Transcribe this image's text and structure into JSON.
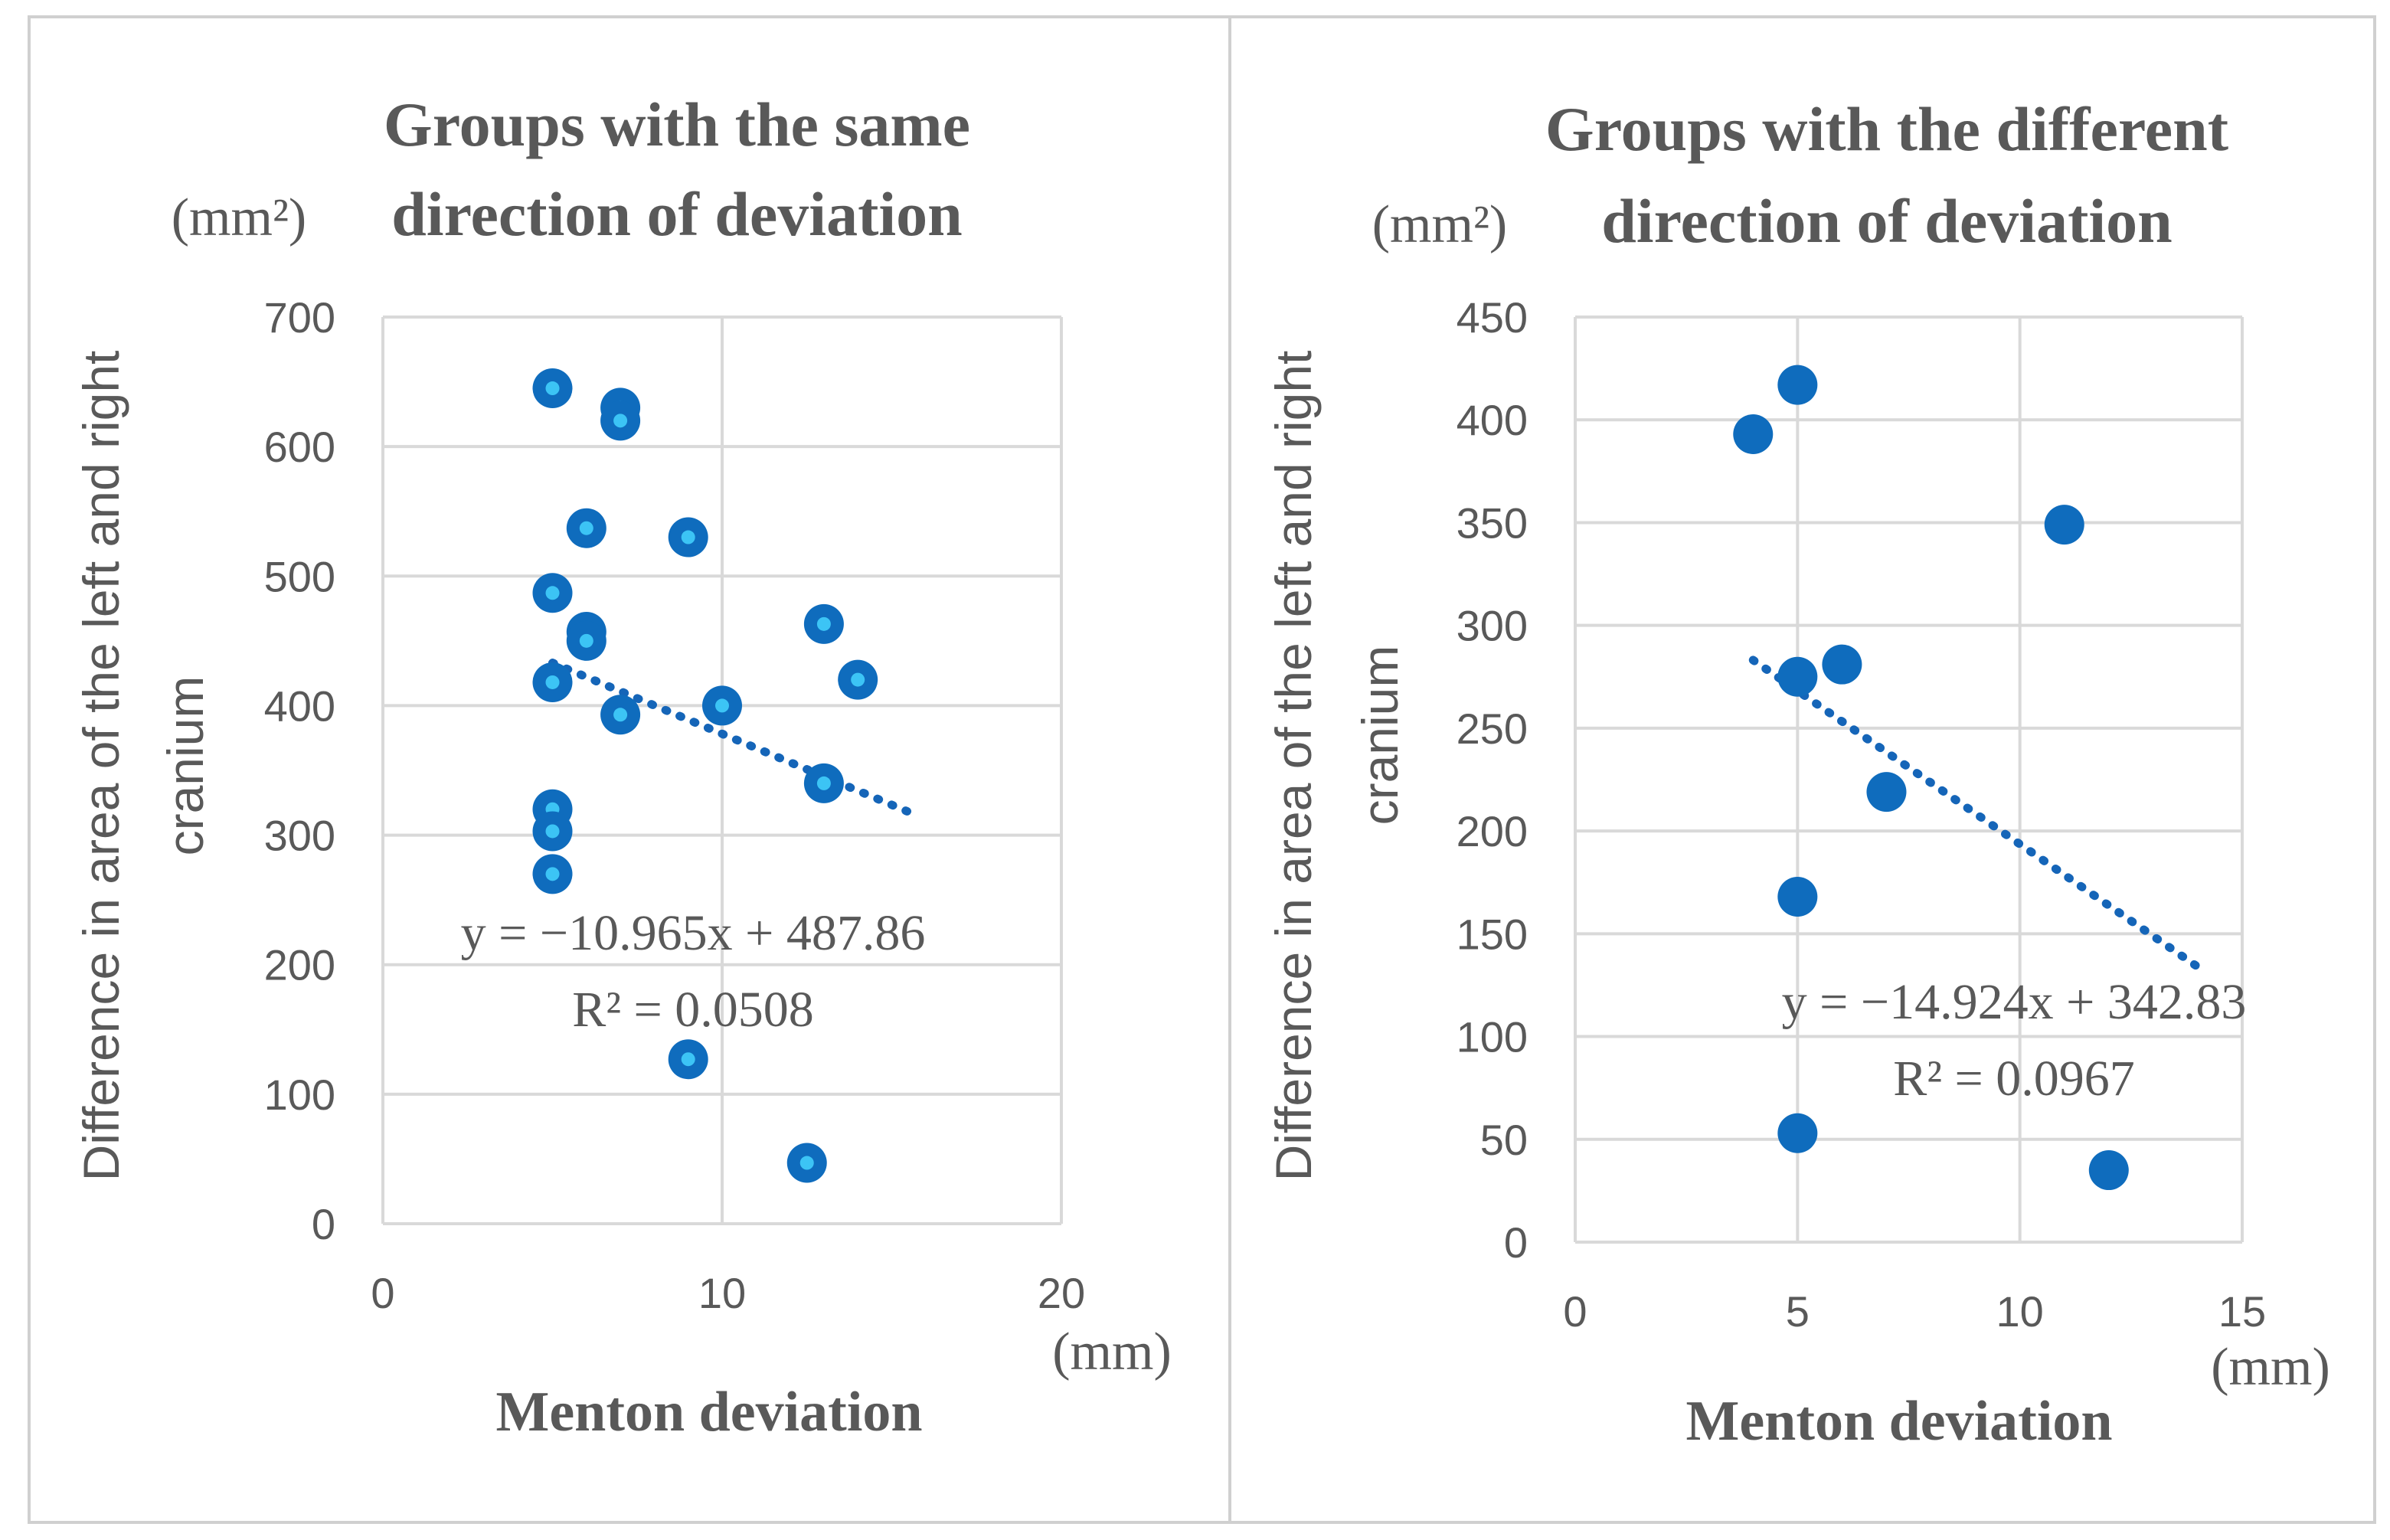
{
  "chart_data": [
    {
      "type": "scatter",
      "title_line1": "Groups with the same",
      "title_line2": "direction of deviation",
      "ylabel_line1": "Difference in area of the left and right",
      "ylabel_line2": "cranium",
      "y_unit": "(mm²)",
      "xlabel": "Menton deviation",
      "x_unit": "(mm)",
      "xlim": [
        0,
        20
      ],
      "ylim": [
        0,
        700
      ],
      "x_ticks": [
        0,
        10,
        20
      ],
      "y_ticks": [
        0,
        100,
        200,
        300,
        400,
        500,
        600,
        700
      ],
      "grid": true,
      "marker": "ring",
      "color": "#0f6cbd",
      "inner_color": "#3cc4f5",
      "points": [
        {
          "x": 5,
          "y": 645
        },
        {
          "x": 7,
          "y": 630
        },
        {
          "x": 7,
          "y": 620
        },
        {
          "x": 6,
          "y": 537
        },
        {
          "x": 9,
          "y": 530
        },
        {
          "x": 5,
          "y": 487
        },
        {
          "x": 13,
          "y": 463
        },
        {
          "x": 6,
          "y": 457
        },
        {
          "x": 6,
          "y": 450
        },
        {
          "x": 14,
          "y": 420
        },
        {
          "x": 5,
          "y": 418
        },
        {
          "x": 10,
          "y": 400
        },
        {
          "x": 7,
          "y": 393
        },
        {
          "x": 13,
          "y": 340
        },
        {
          "x": 5,
          "y": 320
        },
        {
          "x": 5,
          "y": 303
        },
        {
          "x": 5,
          "y": 270
        },
        {
          "x": 9,
          "y": 127
        },
        {
          "x": 12.5,
          "y": 47
        }
      ],
      "trendline": {
        "slope": -10.965,
        "intercept": 487.86,
        "x_range": [
          5,
          15.5
        ]
      },
      "equation": "y = −10.965x + 487.86",
      "r_squared": "R² = 0.0508"
    },
    {
      "type": "scatter",
      "title_line1": "Groups with the different",
      "title_line2": "direction of deviation",
      "ylabel_line1": "Difference in area of the left and right",
      "ylabel_line2": "cranium",
      "y_unit": "(mm²)",
      "xlabel": "Menton deviation",
      "x_unit": "(mm)",
      "xlim": [
        0,
        15
      ],
      "ylim": [
        0,
        450
      ],
      "x_ticks": [
        0,
        5,
        10,
        15
      ],
      "y_ticks": [
        0,
        50,
        100,
        150,
        200,
        250,
        300,
        350,
        400,
        450
      ],
      "grid": true,
      "marker": "solid",
      "color": "#0f6cbd",
      "points": [
        {
          "x": 5,
          "y": 417
        },
        {
          "x": 4,
          "y": 393
        },
        {
          "x": 11,
          "y": 349
        },
        {
          "x": 6,
          "y": 281
        },
        {
          "x": 5,
          "y": 275
        },
        {
          "x": 7,
          "y": 219
        },
        {
          "x": 5,
          "y": 168
        },
        {
          "x": 5,
          "y": 53
        },
        {
          "x": 12,
          "y": 35
        }
      ],
      "trendline": {
        "slope": -14.924,
        "intercept": 342.83,
        "x_range": [
          4,
          14
        ]
      },
      "equation": "y = −14.924x + 342.83",
      "r_squared": "R² = 0.0967"
    }
  ]
}
